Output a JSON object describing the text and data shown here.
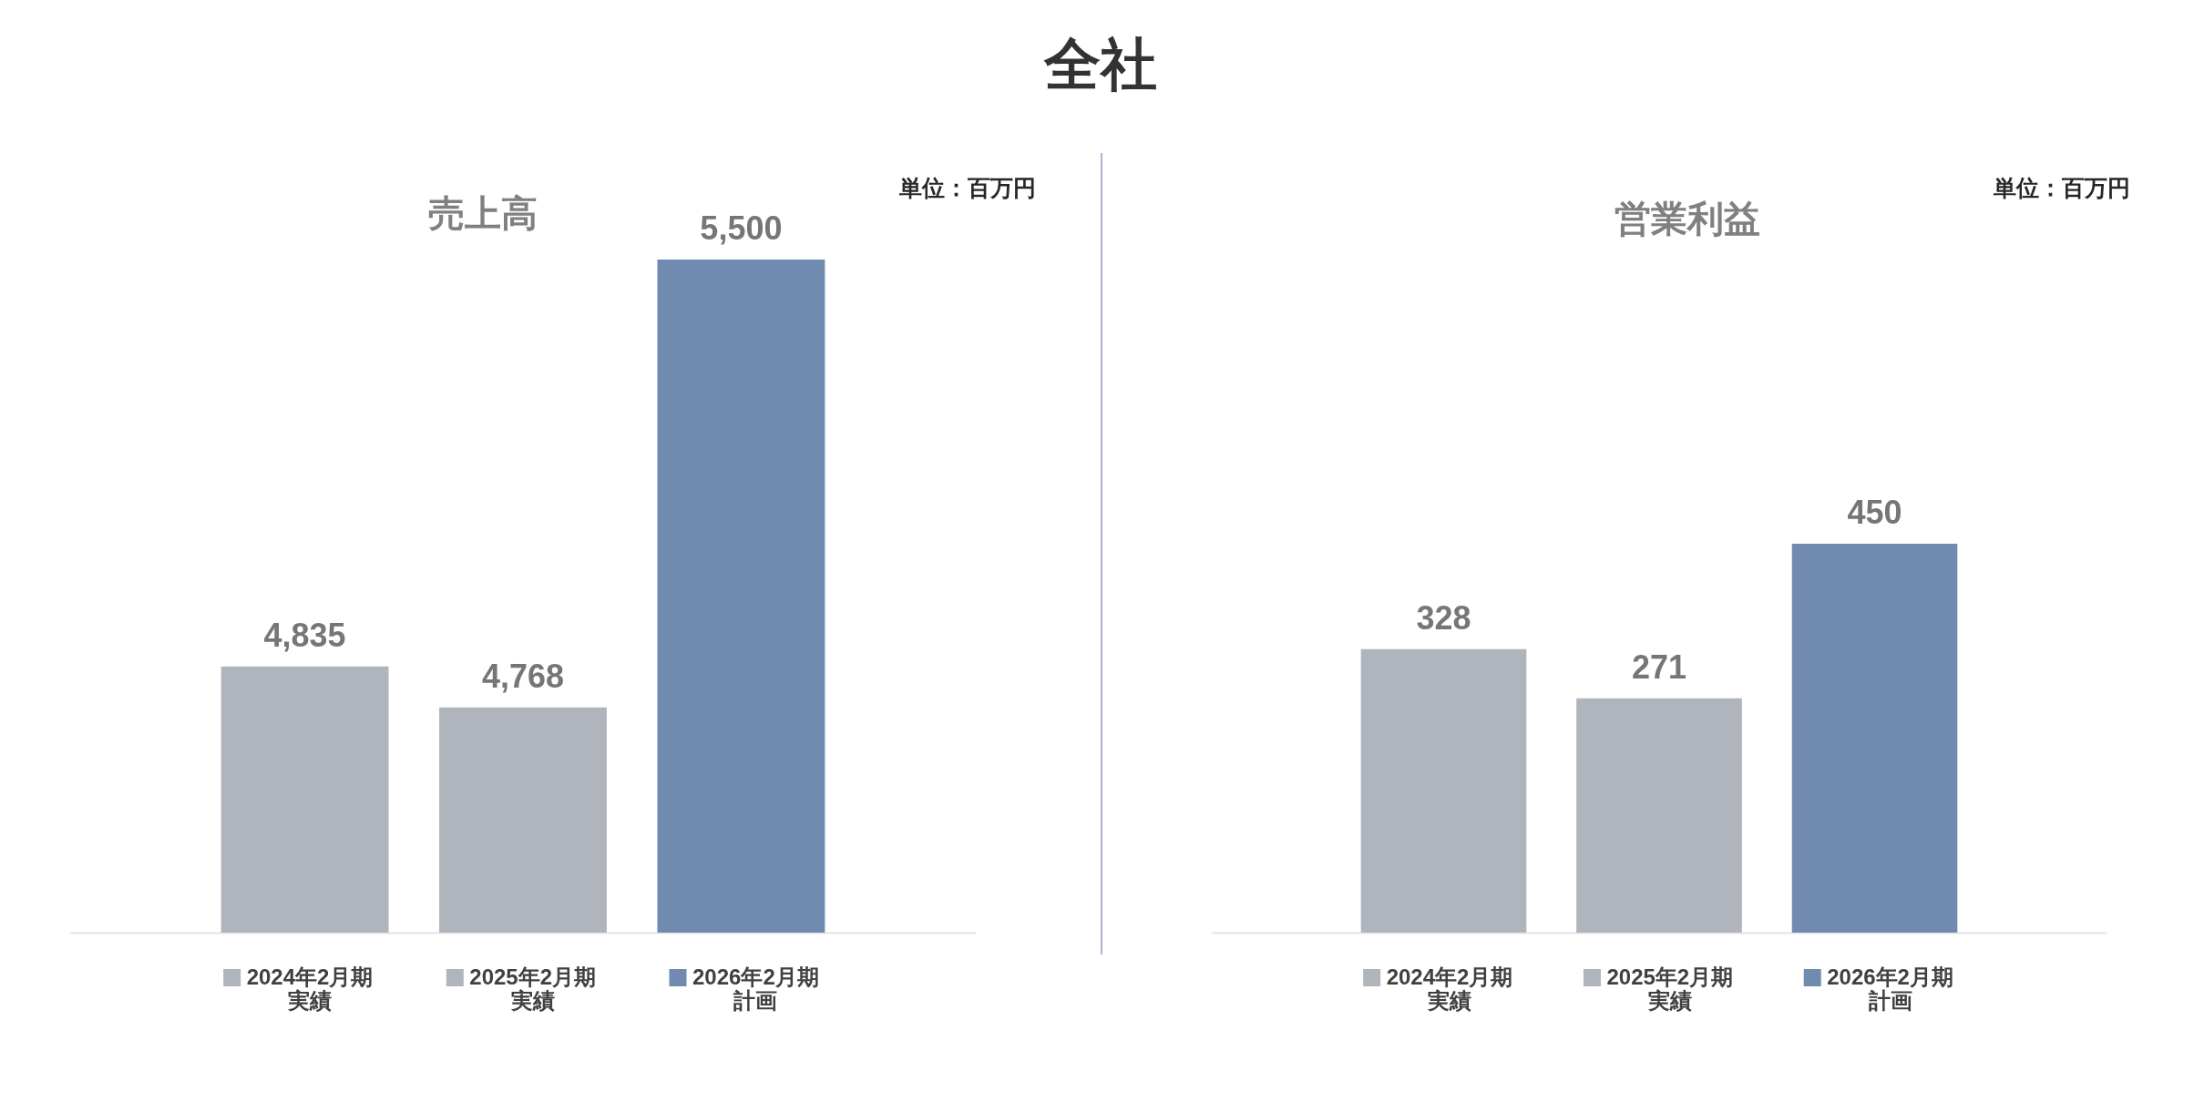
{
  "chart_data": [
    {
      "type": "other",
      "title": "全社"
    },
    {
      "type": "bar",
      "title": "売上高",
      "annotations": [
        "単位：百万円"
      ],
      "categories": [
        null
      ],
      "series": [
        {
          "name": "2024年2月期実績",
          "color": "#b0b4bd",
          "values": [
            4835
          ],
          "value_labels": [
            "4,835"
          ]
        },
        {
          "name": "2025年2月期実績",
          "color": "#b0b4bd",
          "values": [
            4768
          ],
          "value_labels": [
            "4,768"
          ]
        },
        {
          "name": "2026年2月期計画",
          "color": "#718bb0",
          "values": [
            5500
          ],
          "value_labels": [
            "5,500"
          ]
        }
      ],
      "ylim": [
        4400,
        5500
      ],
      "legend": "bottom",
      "tick_labels": false
    },
    {
      "type": "bar",
      "title": "営業利益",
      "annotations": [
        "単位：百万円"
      ],
      "categories": [
        null
      ],
      "series": [
        {
          "name": "2024年2月期実績",
          "color": "#b0b4bd",
          "values": [
            328
          ]
        },
        {
          "name": "2025年2月期実績",
          "color": "#b0b4bd",
          "values": [
            271
          ]
        },
        {
          "name": "2026年2月期計画",
          "color": "#718bb0",
          "values": [
            450
          ]
        }
      ],
      "data_labels": true,
      "legend": "bottom",
      "tick_labels": false
    }
  ]
}
